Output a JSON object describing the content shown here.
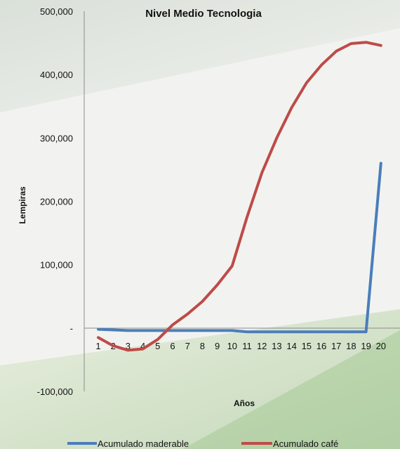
{
  "chart_data": {
    "type": "line",
    "title": "Nivel Medio Tecnologia",
    "xlabel": "Años",
    "ylabel": "Lempiras",
    "ylim": [
      -100000,
      500000
    ],
    "yticks": [
      500000,
      400000,
      300000,
      200000,
      100000,
      0,
      -100000
    ],
    "ytick_labels": [
      "500,000",
      "400,000",
      "300,000",
      "200,000",
      "100,000",
      "-",
      "-100,000"
    ],
    "categories": [
      "1",
      "2",
      "3",
      "4",
      "5",
      "6",
      "7",
      "8",
      "9",
      "10",
      "11",
      "12",
      "13",
      "14",
      "15",
      "16",
      "17",
      "18",
      "19",
      "20"
    ],
    "series": [
      {
        "name": "Acumulado maderable",
        "color": "#4a7ebb",
        "values": [
          -2000,
          -3000,
          -4000,
          -4000,
          -4000,
          -4000,
          -4000,
          -4000,
          -4000,
          -4000,
          -6000,
          -6000,
          -6000,
          -6000,
          -6000,
          -6000,
          -6000,
          -6000,
          -6000,
          260000
        ]
      },
      {
        "name": "Acumulado café",
        "color": "#be4b48",
        "values": [
          -15000,
          -28000,
          -35000,
          -33000,
          -18000,
          5000,
          22000,
          42000,
          68000,
          98000,
          175000,
          245000,
          300000,
          348000,
          387000,
          415000,
          437000,
          449000,
          451000,
          446000
        ]
      }
    ],
    "legend_position": "bottom",
    "grid": false
  }
}
